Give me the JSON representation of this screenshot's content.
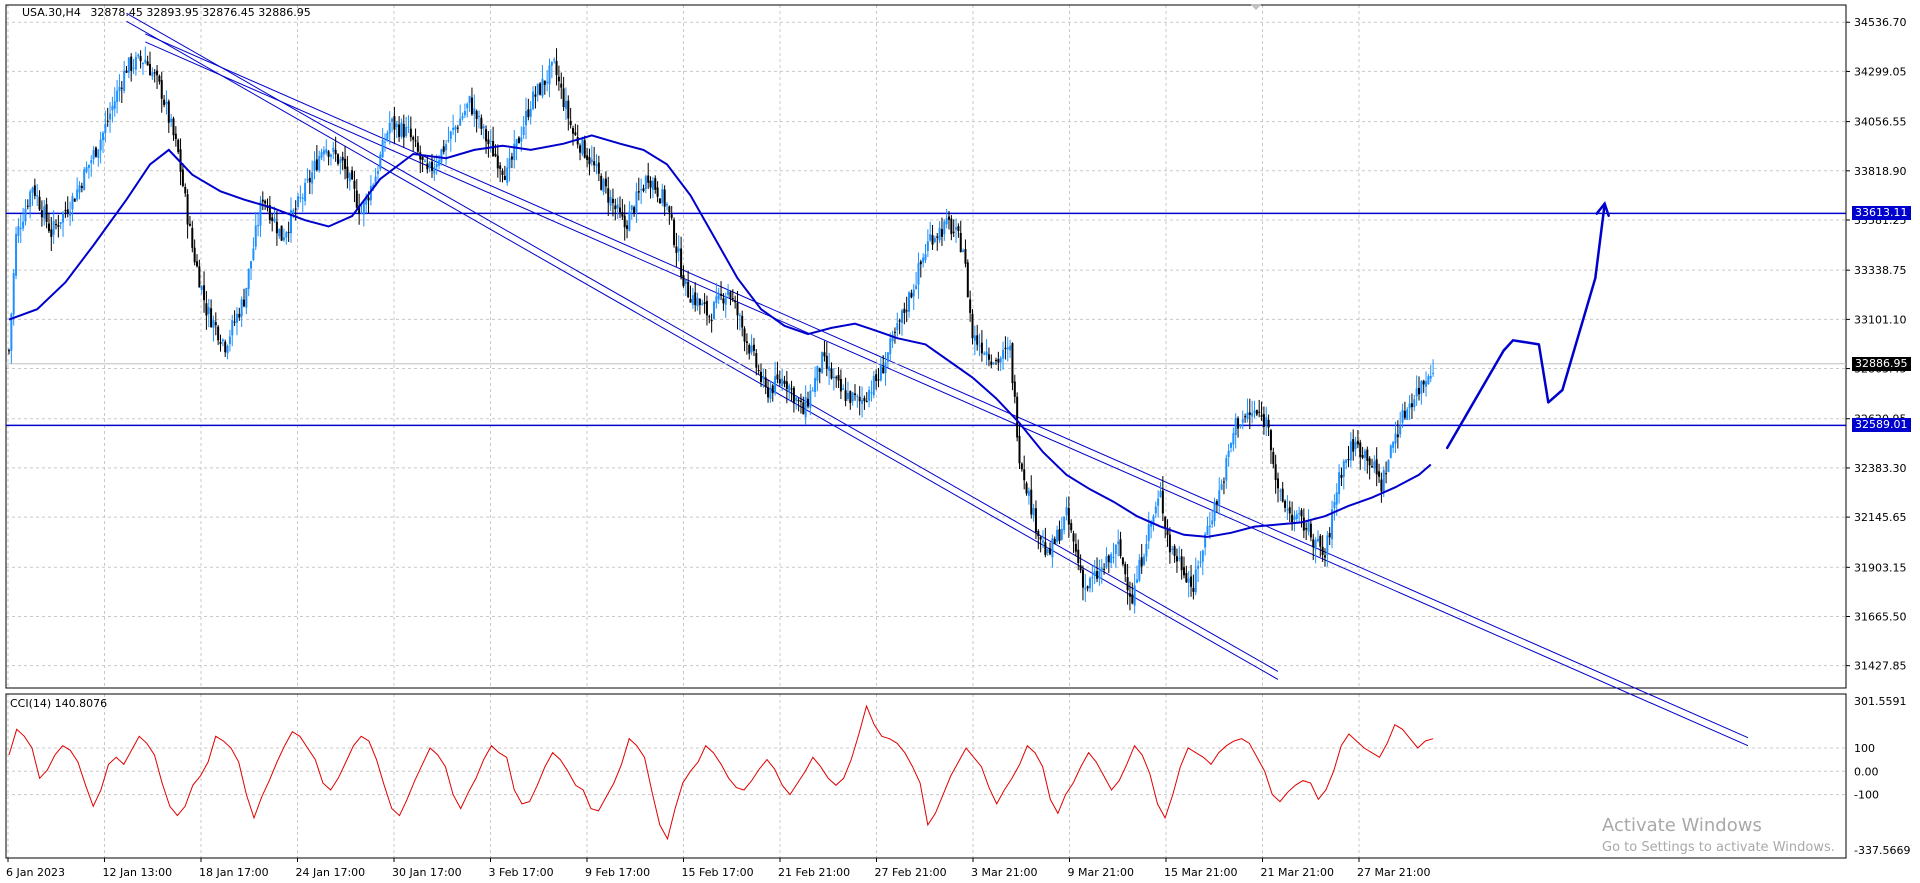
{
  "header": {
    "symbol": "USA.30,H4",
    "ohlc": "32878.45 32893.95 32876.45 32886.95"
  },
  "indicator": {
    "label": "CCI(14) 140.8076"
  },
  "badges": {
    "upper_level": "33613.11",
    "current_price": "32886.95",
    "lower_level": "32589.01"
  },
  "watermark": {
    "title": "Activate Windows",
    "subtitle": "Go to Settings to activate Windows."
  },
  "colors": {
    "bull": "#1e90ff",
    "bear": "#000000",
    "ma": "#0000cd",
    "level": "#0000cd",
    "channel": "#0000cd",
    "cci": "#e00000",
    "grid": "#c8c8c8"
  },
  "chart_data": [
    {
      "type": "candlestick",
      "symbol": "USA.30",
      "timeframe": "H4",
      "x_labels": [
        "6 Jan 2023",
        "12 Jan 13:00",
        "18 Jan 17:00",
        "24 Jan 17:00",
        "30 Jan 17:00",
        "3 Feb 17:00",
        "9 Feb 17:00",
        "15 Feb 17:00",
        "21 Feb 21:00",
        "27 Feb 21:00",
        "3 Mar 21:00",
        "9 Mar 21:00",
        "15 Mar 21:00",
        "21 Mar 21:00",
        "27 Mar 21:00"
      ],
      "y_ticks": [
        34536.7,
        34299.05,
        34056.55,
        33818.9,
        33581.25,
        33338.75,
        33101.1,
        32863.45,
        32620.95,
        32383.3,
        32145.65,
        31903.15,
        31665.5,
        31427.85
      ],
      "ylim": [
        31320,
        34620
      ],
      "close_path": [
        [
          0,
          32950
        ],
        [
          3,
          33500
        ],
        [
          10,
          33750
        ],
        [
          18,
          33520
        ],
        [
          28,
          33700
        ],
        [
          40,
          34000
        ],
        [
          50,
          34320
        ],
        [
          58,
          34360
        ],
        [
          65,
          34200
        ],
        [
          72,
          33900
        ],
        [
          78,
          33450
        ],
        [
          84,
          33150
        ],
        [
          92,
          32980
        ],
        [
          100,
          33200
        ],
        [
          108,
          33700
        ],
        [
          116,
          33500
        ],
        [
          126,
          33720
        ],
        [
          134,
          33950
        ],
        [
          142,
          33850
        ],
        [
          150,
          33620
        ],
        [
          156,
          33800
        ],
        [
          162,
          34050
        ],
        [
          170,
          34000
        ],
        [
          178,
          33800
        ],
        [
          186,
          33950
        ],
        [
          196,
          34150
        ],
        [
          204,
          33950
        ],
        [
          212,
          33800
        ],
        [
          222,
          34150
        ],
        [
          232,
          34320
        ],
        [
          240,
          34000
        ],
        [
          246,
          33900
        ],
        [
          254,
          33720
        ],
        [
          262,
          33550
        ],
        [
          272,
          33800
        ],
        [
          280,
          33650
        ],
        [
          288,
          33250
        ],
        [
          298,
          33120
        ],
        [
          306,
          33250
        ],
        [
          314,
          33000
        ],
        [
          322,
          32750
        ],
        [
          330,
          32820
        ],
        [
          338,
          32650
        ],
        [
          346,
          32900
        ],
        [
          354,
          32750
        ],
        [
          362,
          32700
        ],
        [
          370,
          32820
        ],
        [
          378,
          33050
        ],
        [
          386,
          33300
        ],
        [
          392,
          33500
        ],
        [
          400,
          33560
        ],
        [
          406,
          33450
        ],
        [
          410,
          33020
        ],
        [
          416,
          32950
        ],
        [
          420,
          32900
        ],
        [
          426,
          32950
        ],
        [
          430,
          32450
        ],
        [
          436,
          32150
        ],
        [
          442,
          31950
        ],
        [
          450,
          32150
        ],
        [
          458,
          31800
        ],
        [
          466,
          31900
        ],
        [
          472,
          32000
        ],
        [
          478,
          31750
        ],
        [
          484,
          32050
        ],
        [
          490,
          32250
        ],
        [
          494,
          32000
        ],
        [
          500,
          31900
        ],
        [
          504,
          31800
        ],
        [
          510,
          32100
        ],
        [
          516,
          32300
        ],
        [
          522,
          32600
        ],
        [
          530,
          32650
        ],
        [
          536,
          32600
        ],
        [
          540,
          32250
        ],
        [
          546,
          32150
        ],
        [
          552,
          32100
        ],
        [
          560,
          31950
        ],
        [
          566,
          32350
        ],
        [
          572,
          32500
        ],
        [
          578,
          32450
        ],
        [
          584,
          32300
        ],
        [
          590,
          32550
        ],
        [
          596,
          32700
        ],
        [
          602,
          32800
        ],
        [
          606,
          32886.95
        ]
      ],
      "moving_average": [
        [
          0,
          33100
        ],
        [
          12,
          33150
        ],
        [
          24,
          33280
        ],
        [
          36,
          33460
        ],
        [
          50,
          33680
        ],
        [
          60,
          33850
        ],
        [
          68,
          33920
        ],
        [
          78,
          33800
        ],
        [
          90,
          33720
        ],
        [
          100,
          33680
        ],
        [
          112,
          33640
        ],
        [
          126,
          33580
        ],
        [
          136,
          33550
        ],
        [
          146,
          33600
        ],
        [
          158,
          33780
        ],
        [
          172,
          33900
        ],
        [
          186,
          33880
        ],
        [
          198,
          33920
        ],
        [
          210,
          33940
        ],
        [
          222,
          33920
        ],
        [
          236,
          33950
        ],
        [
          248,
          33990
        ],
        [
          260,
          33950
        ],
        [
          270,
          33920
        ],
        [
          280,
          33850
        ],
        [
          290,
          33700
        ],
        [
          300,
          33500
        ],
        [
          310,
          33300
        ],
        [
          320,
          33150
        ],
        [
          330,
          33070
        ],
        [
          340,
          33030
        ],
        [
          350,
          33060
        ],
        [
          360,
          33080
        ],
        [
          368,
          33050
        ],
        [
          378,
          33010
        ],
        [
          390,
          32980
        ],
        [
          400,
          32900
        ],
        [
          410,
          32820
        ],
        [
          420,
          32720
        ],
        [
          430,
          32600
        ],
        [
          440,
          32460
        ],
        [
          450,
          32350
        ],
        [
          460,
          32280
        ],
        [
          470,
          32220
        ],
        [
          480,
          32150
        ],
        [
          490,
          32100
        ],
        [
          500,
          32060
        ],
        [
          510,
          32050
        ],
        [
          520,
          32070
        ],
        [
          530,
          32100
        ],
        [
          540,
          32110
        ],
        [
          550,
          32120
        ],
        [
          560,
          32150
        ],
        [
          570,
          32200
        ],
        [
          580,
          32240
        ],
        [
          590,
          32290
        ],
        [
          600,
          32350
        ],
        [
          605,
          32400
        ]
      ],
      "horizontal_levels": [
        33613.11,
        32589.01
      ],
      "channel_upper": [
        [
          58,
          34480
        ],
        [
          740,
          31080
        ]
      ],
      "channel_lower": [
        [
          50,
          34580
        ],
        [
          540,
          31400
        ]
      ],
      "drawn_projection": [
        [
          612,
          32480
        ],
        [
          636,
          32950
        ],
        [
          640,
          33000
        ],
        [
          651,
          32980
        ],
        [
          655,
          32700
        ],
        [
          661,
          32760
        ],
        [
          675,
          33300
        ],
        [
          679,
          33660
        ]
      ]
    },
    {
      "type": "line",
      "name": "CCI(14)",
      "ylim": [
        -337.5669,
        301.5591
      ],
      "y_ticks": [
        301.5591,
        100,
        0.0,
        -100,
        -337.5669
      ],
      "values": [
        70,
        180,
        150,
        100,
        -30,
        5,
        70,
        110,
        90,
        40,
        -60,
        -150,
        -80,
        30,
        60,
        30,
        90,
        150,
        120,
        70,
        -50,
        -150,
        -190,
        -150,
        -60,
        -20,
        40,
        150,
        130,
        100,
        40,
        -100,
        -200,
        -110,
        -40,
        40,
        110,
        170,
        150,
        100,
        50,
        -50,
        -80,
        -30,
        40,
        110,
        150,
        130,
        50,
        -60,
        -160,
        -190,
        -120,
        -40,
        30,
        100,
        70,
        20,
        -100,
        -160,
        -90,
        -30,
        50,
        110,
        80,
        60,
        -80,
        -140,
        -130,
        -60,
        20,
        80,
        50,
        0,
        -60,
        -80,
        -160,
        -170,
        -110,
        -50,
        30,
        140,
        110,
        60,
        -90,
        -230,
        -290,
        -160,
        -50,
        0,
        40,
        110,
        80,
        30,
        -30,
        -70,
        -80,
        -40,
        10,
        50,
        10,
        -60,
        -100,
        -50,
        0,
        60,
        20,
        -30,
        -60,
        -30,
        50,
        160,
        280,
        200,
        150,
        140,
        120,
        80,
        20,
        -50,
        -230,
        -180,
        -100,
        -20,
        40,
        100,
        60,
        20,
        -70,
        -140,
        -80,
        -30,
        30,
        110,
        80,
        20,
        -120,
        -180,
        -100,
        -50,
        20,
        80,
        40,
        -20,
        -80,
        -40,
        30,
        110,
        70,
        -10,
        -140,
        -200,
        -100,
        20,
        100,
        80,
        60,
        30,
        80,
        110,
        130,
        140,
        120,
        60,
        0,
        -100,
        -130,
        -90,
        -60,
        -40,
        -50,
        -120,
        -80,
        0,
        110,
        160,
        130,
        100,
        80,
        60,
        120,
        200,
        180,
        140,
        100,
        130,
        140
      ]
    }
  ]
}
